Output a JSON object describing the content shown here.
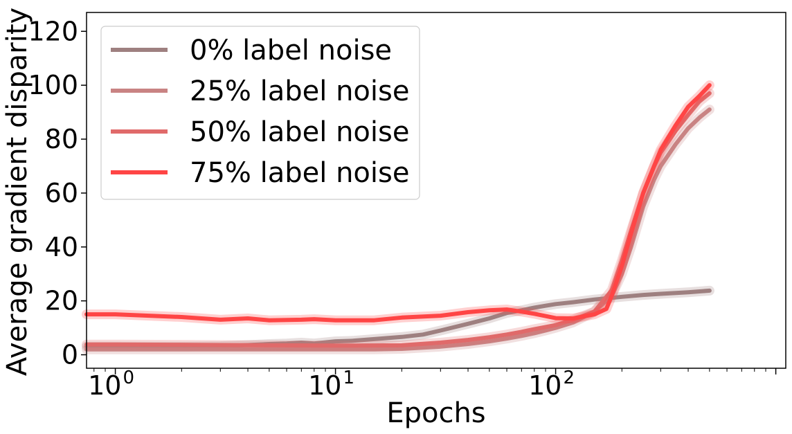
{
  "chart_data": {
    "type": "line",
    "xlabel": "Epochs",
    "ylabel": "Average gradient disparity",
    "xscale": "log",
    "xlim": [
      0.74,
      1110
    ],
    "ylim": [
      -5,
      127
    ],
    "grid": false,
    "legend_position": "top-left",
    "x_ticks": [
      {
        "value": 1,
        "base": "10",
        "exp": "0"
      },
      {
        "value": 10,
        "base": "10",
        "exp": "1"
      },
      {
        "value": 100,
        "base": "10",
        "exp": "2"
      }
    ],
    "y_ticks": [
      0,
      20,
      40,
      60,
      80,
      100,
      120
    ],
    "series": [
      {
        "name": "0% label noise",
        "color": "#9e8080",
        "points": [
          [
            0.74,
            3.0
          ],
          [
            1,
            3.0
          ],
          [
            2,
            3.0
          ],
          [
            3,
            3.2
          ],
          [
            4,
            3.6
          ],
          [
            5,
            4.0
          ],
          [
            6,
            4.2
          ],
          [
            7,
            4.5
          ],
          [
            8,
            4.2
          ],
          [
            10,
            5.0
          ],
          [
            12,
            5.2
          ],
          [
            15,
            5.8
          ],
          [
            20,
            6.6
          ],
          [
            25,
            7.5
          ],
          [
            30,
            9.0
          ],
          [
            40,
            11.5
          ],
          [
            50,
            13.5
          ],
          [
            60,
            15.5
          ],
          [
            70,
            16.5
          ],
          [
            80,
            17.5
          ],
          [
            90,
            18.2
          ],
          [
            100,
            18.8
          ],
          [
            120,
            19.5
          ],
          [
            150,
            20.5
          ],
          [
            200,
            21.5
          ],
          [
            250,
            22.2
          ],
          [
            300,
            22.6
          ],
          [
            400,
            23.2
          ],
          [
            500,
            23.8
          ]
        ]
      },
      {
        "name": "25% label noise",
        "color": "#c98383",
        "points": [
          [
            0.74,
            2.0
          ],
          [
            1,
            2.0
          ],
          [
            2,
            2.0
          ],
          [
            3,
            2.0
          ],
          [
            5,
            2.0
          ],
          [
            10,
            2.0
          ],
          [
            15,
            2.0
          ],
          [
            20,
            2.2
          ],
          [
            30,
            3.0
          ],
          [
            40,
            4.0
          ],
          [
            50,
            5.0
          ],
          [
            60,
            6.0
          ],
          [
            70,
            7.0
          ],
          [
            80,
            8.0
          ],
          [
            90,
            9.0
          ],
          [
            100,
            10.0
          ],
          [
            120,
            12.0
          ],
          [
            150,
            16.0
          ],
          [
            180,
            22.0
          ],
          [
            200,
            30.0
          ],
          [
            220,
            40.0
          ],
          [
            250,
            55.0
          ],
          [
            280,
            65.0
          ],
          [
            300,
            70.0
          ],
          [
            350,
            78.0
          ],
          [
            400,
            84.0
          ],
          [
            450,
            88.0
          ],
          [
            500,
            91.0
          ]
        ]
      },
      {
        "name": "50% label noise",
        "color": "#e06a6a",
        "points": [
          [
            0.74,
            3.8
          ],
          [
            1,
            3.8
          ],
          [
            2,
            3.7
          ],
          [
            3,
            3.6
          ],
          [
            5,
            3.5
          ],
          [
            10,
            3.4
          ],
          [
            20,
            3.5
          ],
          [
            30,
            4.5
          ],
          [
            40,
            5.5
          ],
          [
            50,
            6.5
          ],
          [
            60,
            7.5
          ],
          [
            70,
            8.5
          ],
          [
            80,
            9.5
          ],
          [
            100,
            11.0
          ],
          [
            120,
            13.0
          ],
          [
            150,
            16.0
          ],
          [
            180,
            24.0
          ],
          [
            200,
            35.0
          ],
          [
            220,
            46.0
          ],
          [
            250,
            60.0
          ],
          [
            280,
            70.0
          ],
          [
            300,
            75.0
          ],
          [
            350,
            83.0
          ],
          [
            400,
            89.0
          ],
          [
            450,
            94.0
          ],
          [
            500,
            97.0
          ]
        ]
      },
      {
        "name": "75% label noise",
        "color": "#ff4545",
        "points": [
          [
            0.74,
            15.0
          ],
          [
            1,
            15.0
          ],
          [
            2,
            14.0
          ],
          [
            3,
            13.0
          ],
          [
            4,
            13.5
          ],
          [
            5,
            12.8
          ],
          [
            7,
            13.0
          ],
          [
            8,
            13.2
          ],
          [
            10,
            12.8
          ],
          [
            15,
            12.8
          ],
          [
            20,
            13.8
          ],
          [
            30,
            14.5
          ],
          [
            40,
            15.8
          ],
          [
            50,
            16.5
          ],
          [
            60,
            16.8
          ],
          [
            70,
            16.0
          ],
          [
            80,
            15.2
          ],
          [
            100,
            13.6
          ],
          [
            120,
            13.5
          ],
          [
            150,
            15.0
          ],
          [
            170,
            17.0
          ],
          [
            180,
            22.0
          ],
          [
            200,
            33.0
          ],
          [
            220,
            45.0
          ],
          [
            250,
            60.0
          ],
          [
            280,
            70.0
          ],
          [
            300,
            76.0
          ],
          [
            350,
            85.0
          ],
          [
            400,
            92.0
          ],
          [
            450,
            96.0
          ],
          [
            500,
            100.0
          ]
        ]
      }
    ]
  }
}
